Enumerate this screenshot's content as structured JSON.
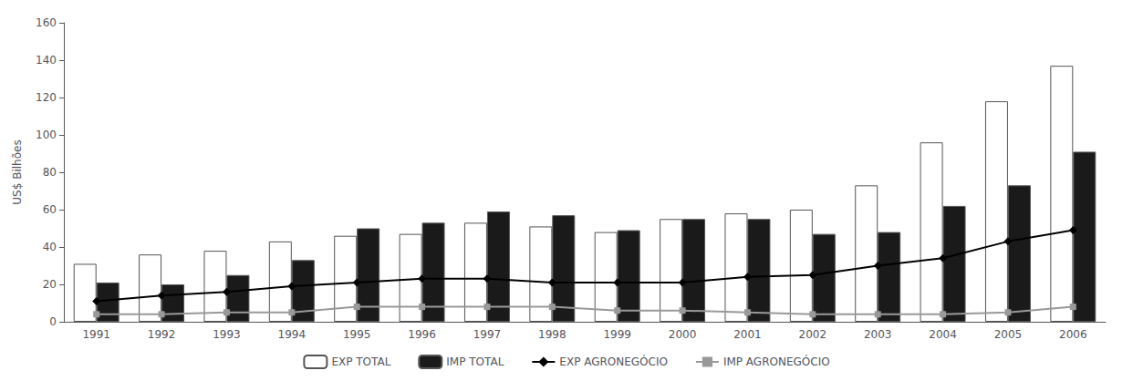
{
  "chart_data": {
    "type": "bar",
    "categories": [
      "1991",
      "1992",
      "1993",
      "1994",
      "1995",
      "1996",
      "1997",
      "1998",
      "1999",
      "2000",
      "2001",
      "2002",
      "2003",
      "2004",
      "2005",
      "2006"
    ],
    "series": [
      {
        "name": "EXP TOTAL",
        "type": "bar",
        "color": "#ffffff",
        "values": [
          31,
          36,
          38,
          43,
          46,
          47,
          53,
          51,
          48,
          55,
          58,
          60,
          73,
          96,
          118,
          137
        ]
      },
      {
        "name": "IMP TOTAL",
        "type": "bar",
        "color": "#1a1a1a",
        "values": [
          21,
          20,
          25,
          33,
          50,
          53,
          59,
          57,
          49,
          55,
          55,
          47,
          48,
          62,
          73,
          91
        ]
      },
      {
        "name": "EXP AGRONEGÓCIO",
        "type": "line",
        "color": "#000000",
        "marker": "diamond",
        "values": [
          11,
          14,
          16,
          19,
          21,
          23,
          23,
          21,
          21,
          21,
          24,
          25,
          30,
          34,
          43,
          49
        ]
      },
      {
        "name": "IMP AGRONEGÓCIO",
        "type": "line",
        "color": "#999999",
        "marker": "square",
        "values": [
          4,
          4,
          5,
          5,
          8,
          8,
          8,
          8,
          6,
          6,
          5,
          4,
          4,
          4,
          5,
          8
        ]
      }
    ],
    "ylabel": "US$ Bilhões",
    "ylim": [
      0,
      160
    ],
    "yticks": [
      0,
      20,
      40,
      60,
      80,
      100,
      120,
      140,
      160
    ],
    "grid": false,
    "legend": "bottom"
  }
}
